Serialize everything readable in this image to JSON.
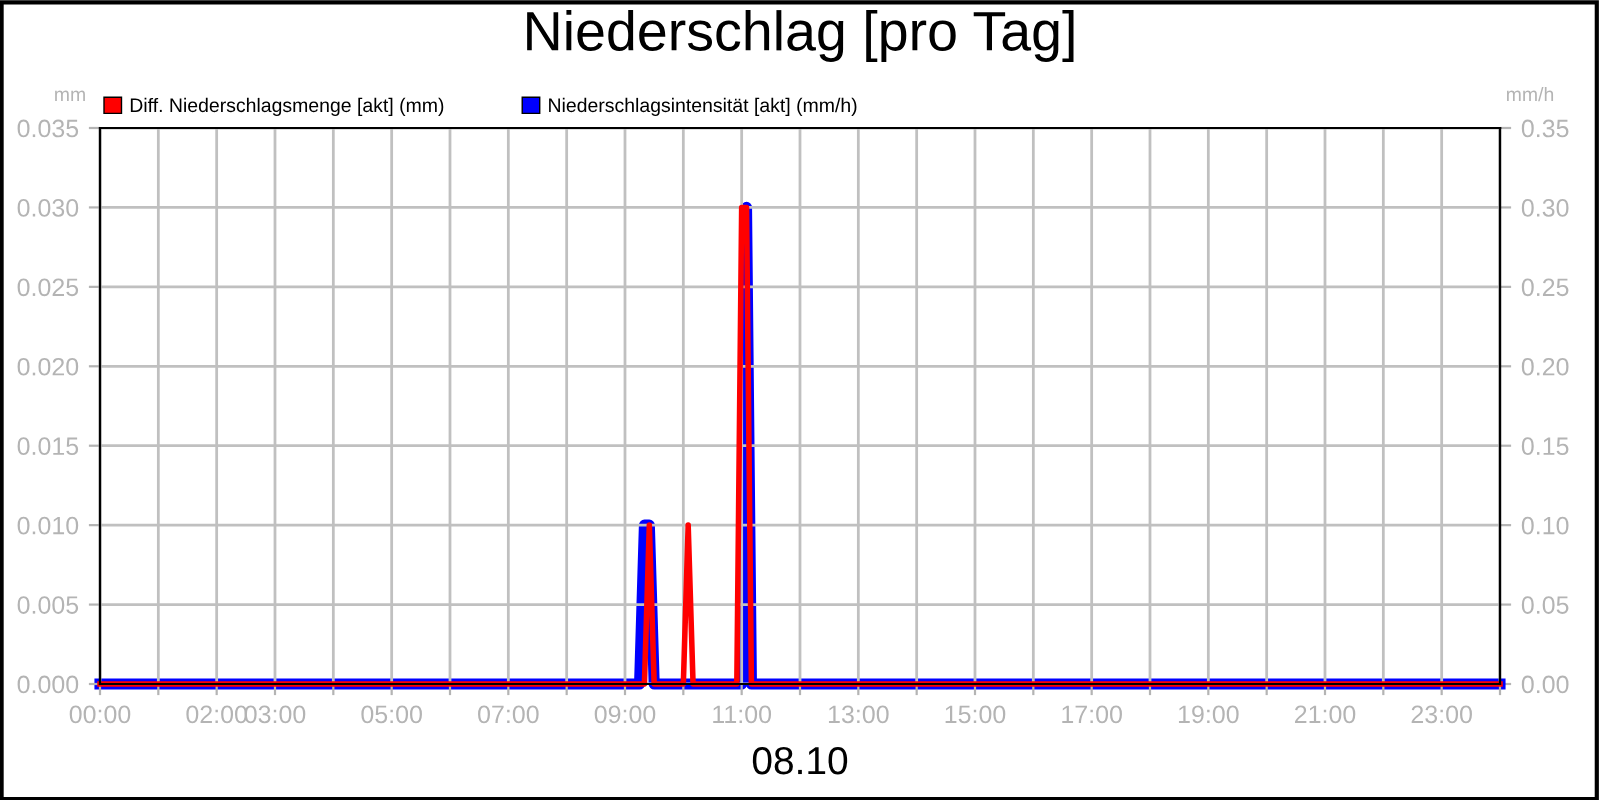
{
  "chart_data": {
    "type": "line",
    "title": "Niederschlag [pro Tag]",
    "xlabel": "08.10",
    "ylabel": "mm",
    "y2label": "mm/h",
    "xlim": [
      0,
      24
    ],
    "xticks": [
      {
        "value": 0,
        "label": "00:00"
      },
      {
        "value": 1,
        "label": null
      },
      {
        "value": 2,
        "label": "02:00"
      },
      {
        "value": 3,
        "label": "03:00"
      },
      {
        "value": 4,
        "label": null
      },
      {
        "value": 5,
        "label": "05:00"
      },
      {
        "value": 6,
        "label": null
      },
      {
        "value": 7,
        "label": "07:00"
      },
      {
        "value": 8,
        "label": null
      },
      {
        "value": 9,
        "label": "09:00"
      },
      {
        "value": 10,
        "label": null
      },
      {
        "value": 11,
        "label": "11:00"
      },
      {
        "value": 12,
        "label": null
      },
      {
        "value": 13,
        "label": "13:00"
      },
      {
        "value": 14,
        "label": null
      },
      {
        "value": 15,
        "label": "15:00"
      },
      {
        "value": 16,
        "label": null
      },
      {
        "value": 17,
        "label": "17:00"
      },
      {
        "value": 18,
        "label": null
      },
      {
        "value": 19,
        "label": "19:00"
      },
      {
        "value": 20,
        "label": null
      },
      {
        "value": 21,
        "label": "21:00"
      },
      {
        "value": 22,
        "label": null
      },
      {
        "value": 23,
        "label": "23:00"
      },
      {
        "value": 24,
        "label": null
      }
    ],
    "ylim": [
      0,
      0.035
    ],
    "yticks": [
      {
        "value": 0,
        "label": "0.000"
      },
      {
        "value": 0.005,
        "label": "0.005"
      },
      {
        "value": 0.01,
        "label": "0.010"
      },
      {
        "value": 0.015,
        "label": "0.015"
      },
      {
        "value": 0.02,
        "label": "0.020"
      },
      {
        "value": 0.025,
        "label": "0.025"
      },
      {
        "value": 0.03,
        "label": "0.030"
      },
      {
        "value": 0.035,
        "label": "0.035"
      }
    ],
    "y2lim": [
      0,
      0.35
    ],
    "y2ticks": [
      {
        "value": 0,
        "label": "0.00"
      },
      {
        "value": 0.05,
        "label": "0.05"
      },
      {
        "value": 0.1,
        "label": "0.10"
      },
      {
        "value": 0.15,
        "label": "0.15"
      },
      {
        "value": 0.2,
        "label": "0.20"
      },
      {
        "value": 0.25,
        "label": "0.25"
      },
      {
        "value": 0.3,
        "label": "0.30"
      },
      {
        "value": 0.35,
        "label": "0.35"
      }
    ],
    "grid": true,
    "legend": "top left",
    "line_style": "solid",
    "marker": "none",
    "series": [
      {
        "name": "Niederschlagsintensität [akt] (mm/h)",
        "color": "#0000ff",
        "axis": "y2",
        "x": [
          0,
          9.25,
          9.333,
          9.417,
          9.5,
          11.0,
          11.083,
          11.167,
          24
        ],
        "values": [
          0,
          0,
          0.1,
          0.1,
          0,
          0,
          0.3,
          0,
          0
        ]
      },
      {
        "name": "Diff. Niederschlagsmenge [akt] (mm)",
        "color": "#ff0000",
        "axis": "y",
        "x": [
          0,
          9.333,
          9.417,
          9.5,
          10.0,
          10.083,
          10.167,
          10.917,
          11.0,
          11.083,
          11.167,
          24
        ],
        "values": [
          0,
          0,
          0.01,
          0,
          0,
          0.01,
          0,
          0,
          0.03,
          0.03,
          0,
          0
        ]
      }
    ]
  }
}
